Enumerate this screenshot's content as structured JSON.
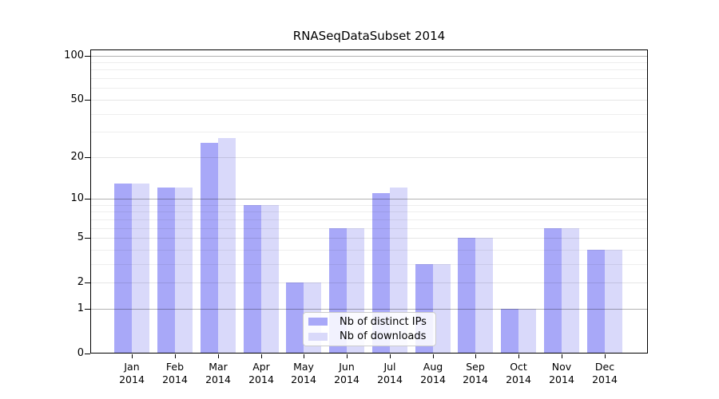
{
  "chart_data": {
    "type": "bar",
    "title": "RNASeqDataSubset 2014",
    "categories": [
      "Jan 2014",
      "Feb 2014",
      "Mar 2014",
      "Apr 2014",
      "May 2014",
      "Jun 2014",
      "Jul 2014",
      "Aug 2014",
      "Sep 2014",
      "Oct 2014",
      "Nov 2014",
      "Dec 2014"
    ],
    "series": [
      {
        "name": "Nb of distinct IPs",
        "color": "#a8a8f8",
        "values": [
          13,
          12,
          25,
          9,
          2,
          6,
          11,
          3,
          5,
          1,
          6,
          4
        ]
      },
      {
        "name": "Nb of downloads",
        "color": "#d9d9fa",
        "values": [
          13,
          12,
          27,
          9,
          2,
          6,
          12,
          3,
          5,
          1,
          6,
          4
        ]
      }
    ],
    "xlabel": "",
    "ylabel": "",
    "y_scale": "log10(value+1)",
    "y_ticks": [
      0,
      1,
      2,
      5,
      10,
      20,
      50,
      100
    ],
    "y_minor_ticks": [
      3,
      4,
      6,
      7,
      8,
      9,
      30,
      40,
      60,
      70,
      80,
      90
    ],
    "ylim": [
      0,
      110
    ],
    "grid": true,
    "legend_position": "lower center (inside plot)"
  }
}
